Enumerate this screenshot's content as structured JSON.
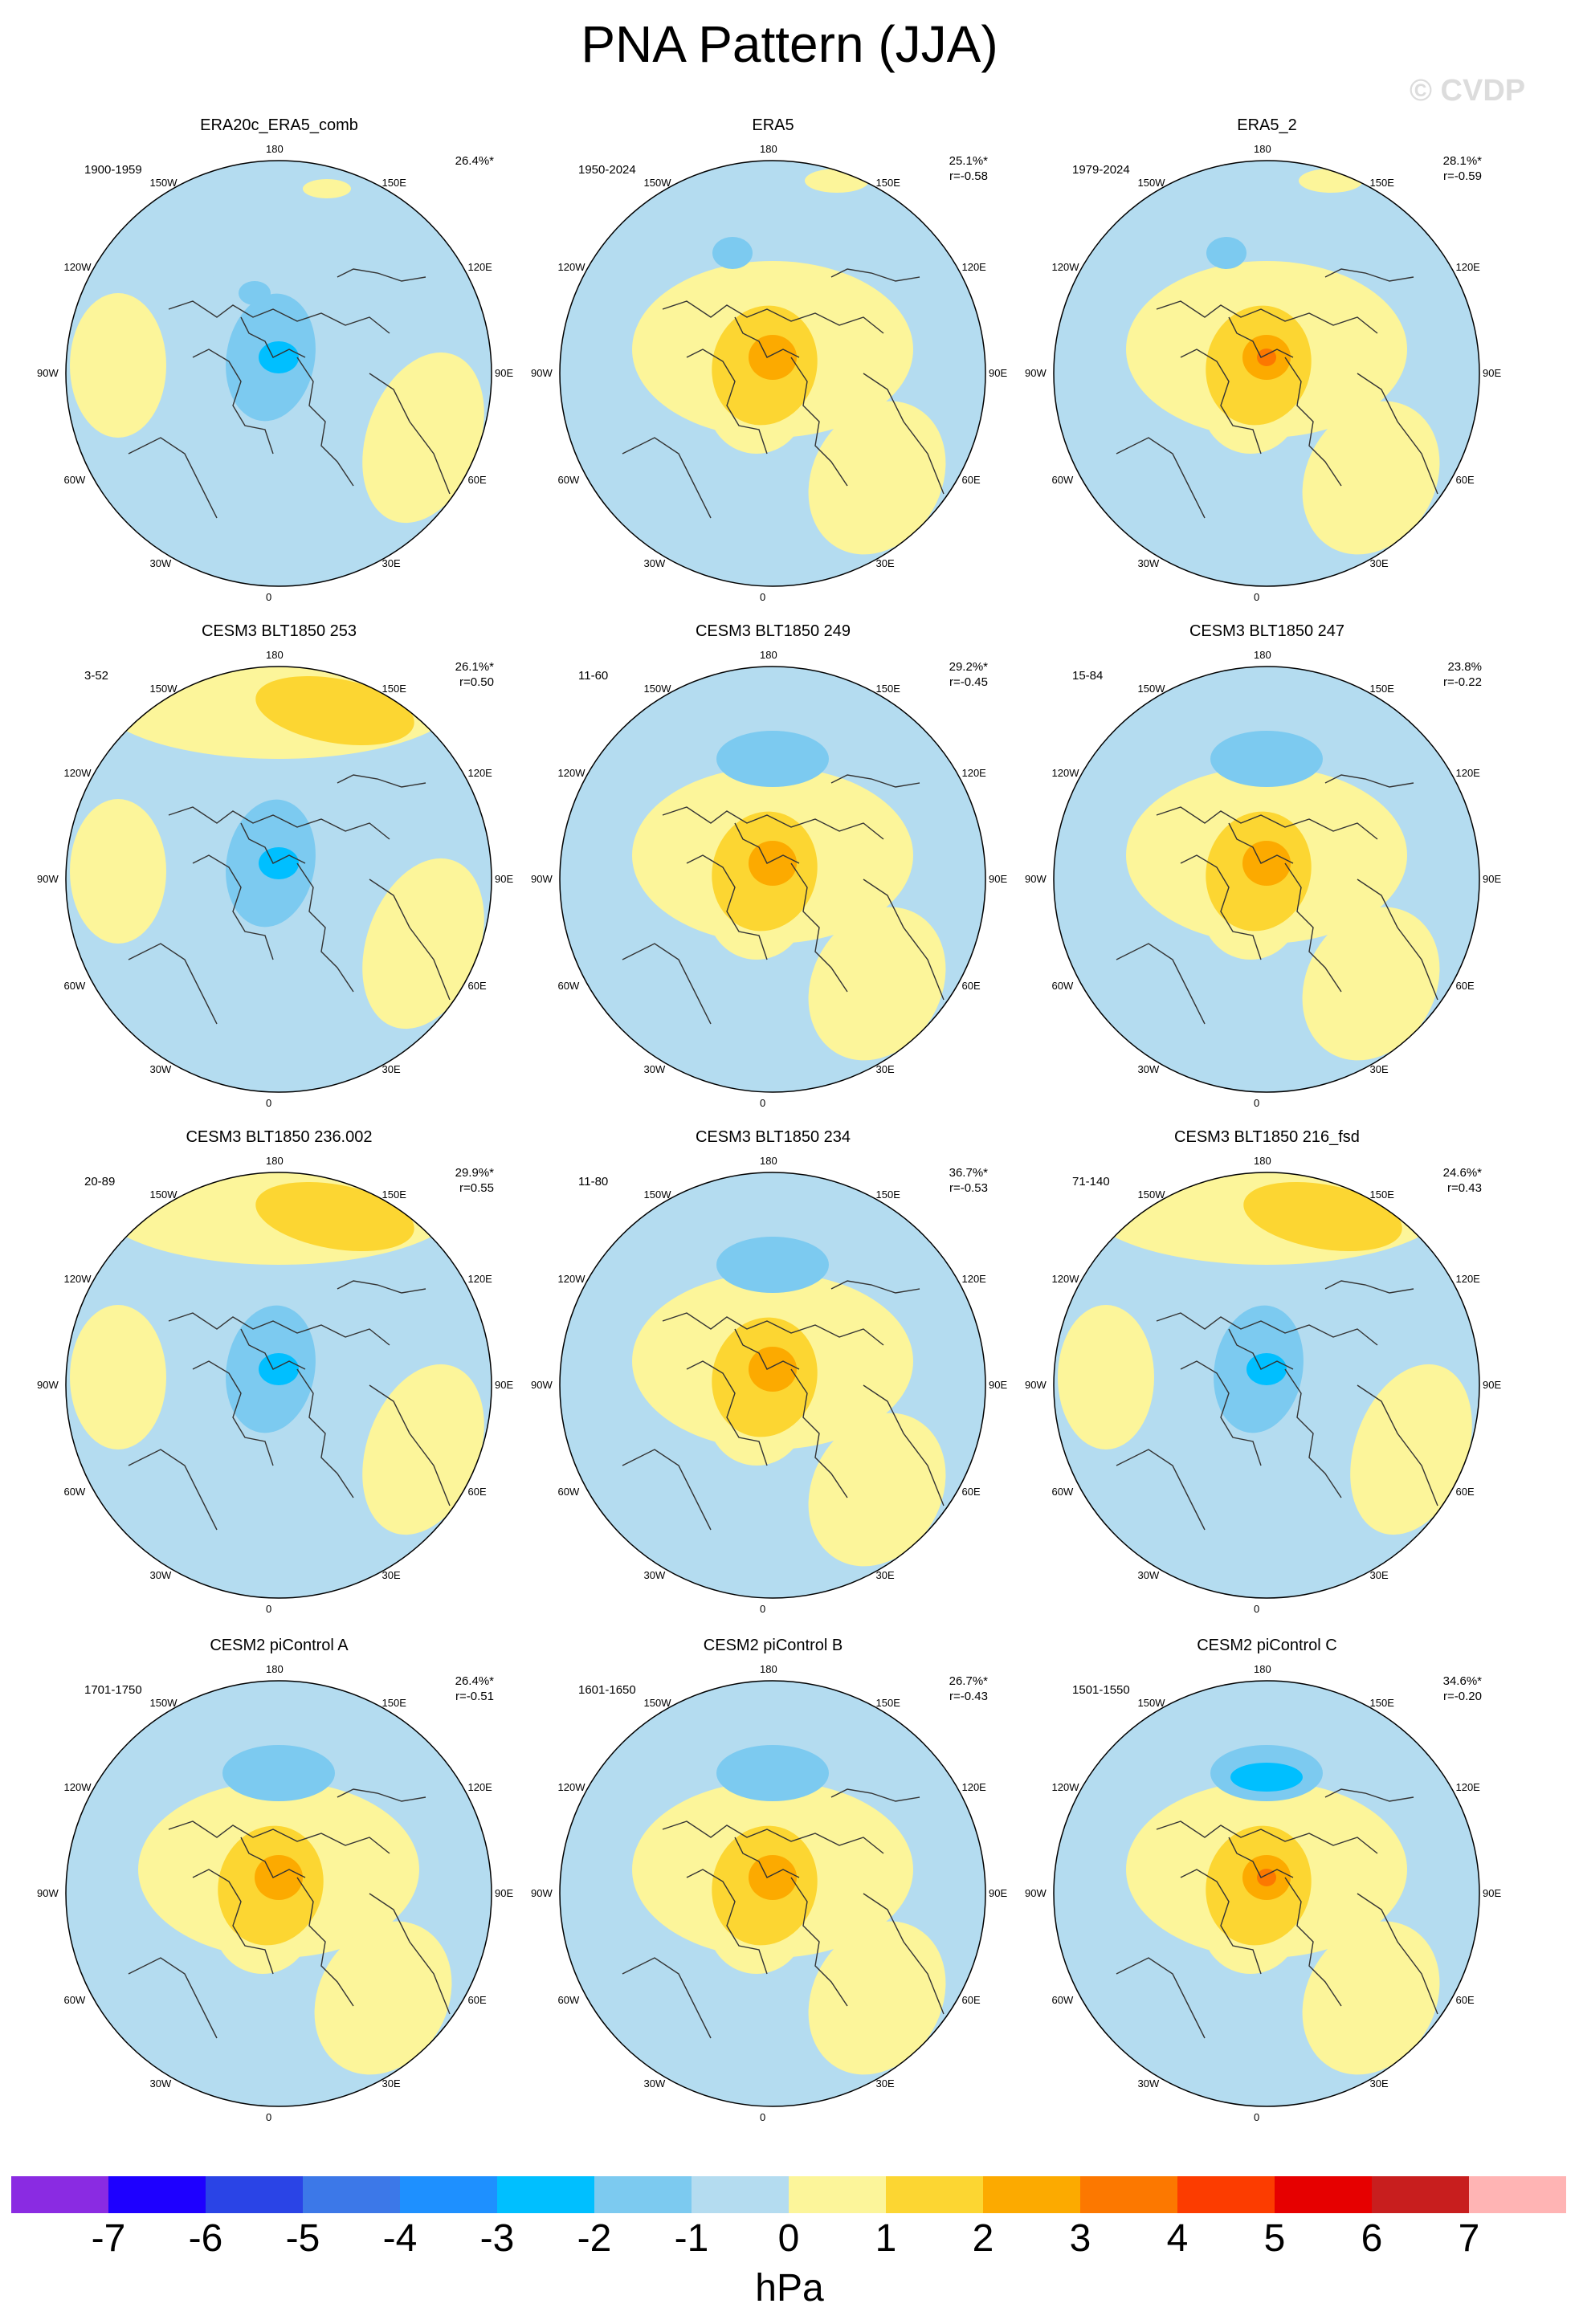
{
  "title": "PNA Pattern (JJA)",
  "watermark": "© CVDP",
  "lon_labels": [
    "180",
    "150E",
    "120E",
    "90E",
    "60E",
    "30E",
    "0",
    "30W",
    "60W",
    "90W",
    "120W",
    "150W"
  ],
  "panels": [
    {
      "title": "ERA20c_ERA5_comb",
      "years": "1900-1959",
      "pct": "26.4%*",
      "r": "",
      "pattern": "neg_pole"
    },
    {
      "title": "ERA5",
      "years": "1950-2024",
      "pct": "25.1%*",
      "r": "r=-0.58",
      "pattern": "pos_pole"
    },
    {
      "title": "ERA5_2",
      "years": "1979-2024",
      "pct": "28.1%*",
      "r": "r=-0.59",
      "pattern": "pos_pole_strong"
    },
    {
      "title": "CESM3 BLT1850 253",
      "years": "3-52",
      "pct": "26.1%*",
      "r": "r=0.50",
      "pattern": "neg_pole_pac_pos"
    },
    {
      "title": "CESM3 BLT1850 249",
      "years": "11-60",
      "pct": "29.2%*",
      "r": "r=-0.45",
      "pattern": "pos_pole_pac_neg"
    },
    {
      "title": "CESM3 BLT1850 247",
      "years": "15-84",
      "pct": "23.8%",
      "r": "r=-0.22",
      "pattern": "pos_pole_pac_neg"
    },
    {
      "title": "CESM3 BLT1850 236.002",
      "years": "20-89",
      "pct": "29.9%*",
      "r": "r=0.55",
      "pattern": "neg_pole_pac_pos"
    },
    {
      "title": "CESM3 BLT1850 234",
      "years": "11-80",
      "pct": "36.7%*",
      "r": "r=-0.53",
      "pattern": "pos_pole_pac_neg"
    },
    {
      "title": "CESM3 BLT1850 216_fsd",
      "years": "71-140",
      "pct": "24.6%*",
      "r": "r=0.43",
      "pattern": "neg_pole_pac_pos"
    },
    {
      "title": "CESM2 piControl A",
      "years": "1701-1750",
      "pct": "26.4%*",
      "r": "r=-0.51",
      "pattern": "pos_pole_pac_neg"
    },
    {
      "title": "CESM2 piControl B",
      "years": "1601-1650",
      "pct": "26.7%*",
      "r": "r=-0.43",
      "pattern": "pos_pole_pac_neg"
    },
    {
      "title": "CESM2 piControl C",
      "years": "1501-1550",
      "pct": "34.6%*",
      "r": "r=-0.20",
      "pattern": "pos_pole_pac_neg_strong"
    }
  ],
  "colorbar": {
    "colors": [
      "#8a2be2",
      "#1e00ff",
      "#2a44e6",
      "#3c78e8",
      "#1e90ff",
      "#00bfff",
      "#7ccaf0",
      "#b4dcf0",
      "#fcf59a",
      "#fcd632",
      "#fcaa00",
      "#fc7800",
      "#fc3c00",
      "#e60000",
      "#c81e1e",
      "#ffb4b4"
    ],
    "labels": [
      "-7",
      "-6",
      "-5",
      "-4",
      "-3",
      "-2",
      "-1",
      "0",
      "1",
      "2",
      "3",
      "4",
      "5",
      "6",
      "7"
    ],
    "units": "hPa"
  }
}
